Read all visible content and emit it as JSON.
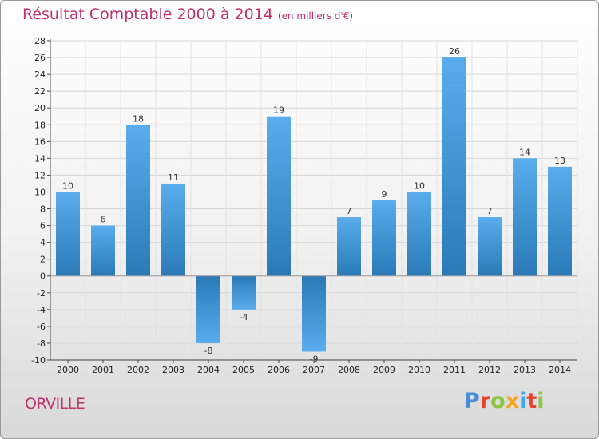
{
  "title": "Résultat Comptable 2000 à 2014",
  "subtitle": "(en milliers d'€)",
  "city": "ORVILLE",
  "logo": {
    "text": "Proxiti",
    "colors": [
      "#4a8fd6",
      "#e8412c",
      "#8cc63f",
      "#f4a41d",
      "#3fa9f5",
      "#e8412c",
      "#8cc63f"
    ]
  },
  "colors": {
    "title": "#c0306a",
    "bar_light": "#5aacec",
    "bar_dark": "#2a7ab8",
    "grid": "#d6d6d6"
  },
  "chart_data": {
    "type": "bar",
    "title": "Résultat Comptable 2000 à 2014",
    "xlabel": "",
    "ylabel": "",
    "categories": [
      "2000",
      "2001",
      "2002",
      "2003",
      "2004",
      "2005",
      "2006",
      "2007",
      "2008",
      "2009",
      "2010",
      "2011",
      "2012",
      "2013",
      "2014"
    ],
    "values": [
      10,
      6,
      18,
      11,
      -8,
      -4,
      19,
      -9,
      7,
      9,
      10,
      26,
      7,
      14,
      13
    ],
    "ylim": [
      -10,
      28
    ],
    "yticks": [
      -10,
      -8,
      -6,
      -4,
      -2,
      0,
      2,
      4,
      6,
      8,
      10,
      12,
      14,
      16,
      18,
      20,
      22,
      24,
      26,
      28
    ],
    "grid": true,
    "legend": "none"
  }
}
